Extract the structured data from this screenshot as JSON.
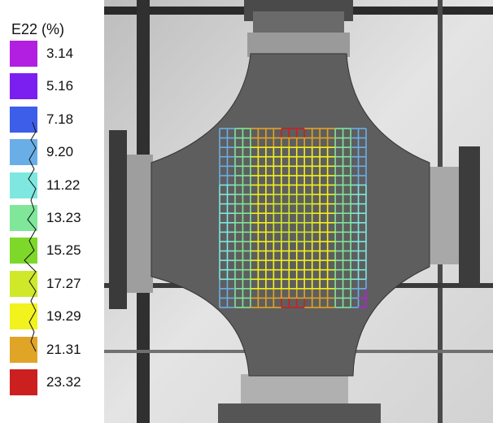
{
  "legend": {
    "title": "E22 (%)",
    "entries": [
      {
        "label": "3.14",
        "color": "#b21fe0"
      },
      {
        "label": "5.16",
        "color": "#7a1ff0"
      },
      {
        "label": "7.18",
        "color": "#3d5ee8"
      },
      {
        "label": "9.20",
        "color": "#6aaee8"
      },
      {
        "label": "11.22",
        "color": "#7ee8e0"
      },
      {
        "label": "13.23",
        "color": "#7fe69a"
      },
      {
        "label": "15.25",
        "color": "#7ed82a"
      },
      {
        "label": "17.27",
        "color": "#cfe82a"
      },
      {
        "label": "19.29",
        "color": "#f2f21e"
      },
      {
        "label": "21.31",
        "color": "#e0a426"
      },
      {
        "label": "23.32",
        "color": "#cc1f1f"
      }
    ]
  },
  "image": {
    "subject": "cruciform specimen",
    "specimen_color": "#5a5a5a",
    "background_color": "#d9d9d9"
  }
}
